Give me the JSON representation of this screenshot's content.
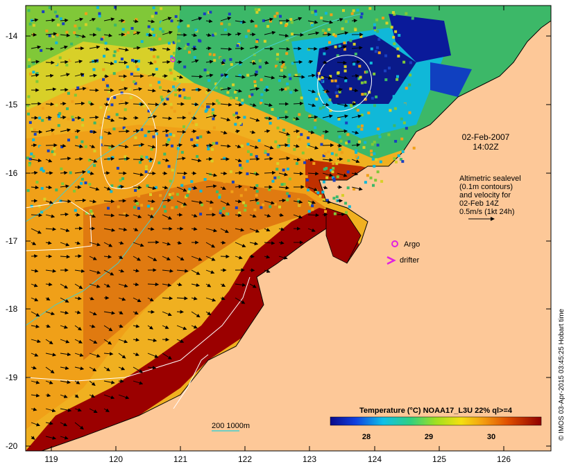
{
  "map": {
    "date_line1": "02-Feb-2007",
    "date_line2": "14:02Z",
    "altimetry_lines": [
      "Altimetric sealevel",
      "(0.1m contours)",
      "and velocity for",
      "02-Feb 14Z",
      "0.5m/s (1kt 24h)"
    ],
    "legend_argo": "Argo",
    "legend_drifter": "drifter",
    "bathymetry_label": "200  1000m",
    "colorbar_title": "Temperature (°C) NOAA17_L3U 22% ql>=4",
    "colorbar_ticks": [
      "28",
      "29",
      "30"
    ],
    "credit": "© IMOS 03-Apr-2015 03:45:25 Hobart time",
    "lon_ticks": [
      "119",
      "120",
      "121",
      "122",
      "123",
      "124",
      "125",
      "126"
    ],
    "lat_ticks": [
      "-14",
      "-15",
      "-16",
      "-17",
      "-18",
      "-19",
      "-20"
    ],
    "colors": {
      "land": "#fdc898",
      "warm": "#9b0000",
      "orange": "#e8760a",
      "yellow": "#f4d21a",
      "green": "#5cd03a",
      "blue": "#1a6dd8",
      "navy": "#0a1a8a",
      "argo": "#e020e0",
      "contour": "#ffffff",
      "bathy200": "#40d0d0"
    }
  }
}
